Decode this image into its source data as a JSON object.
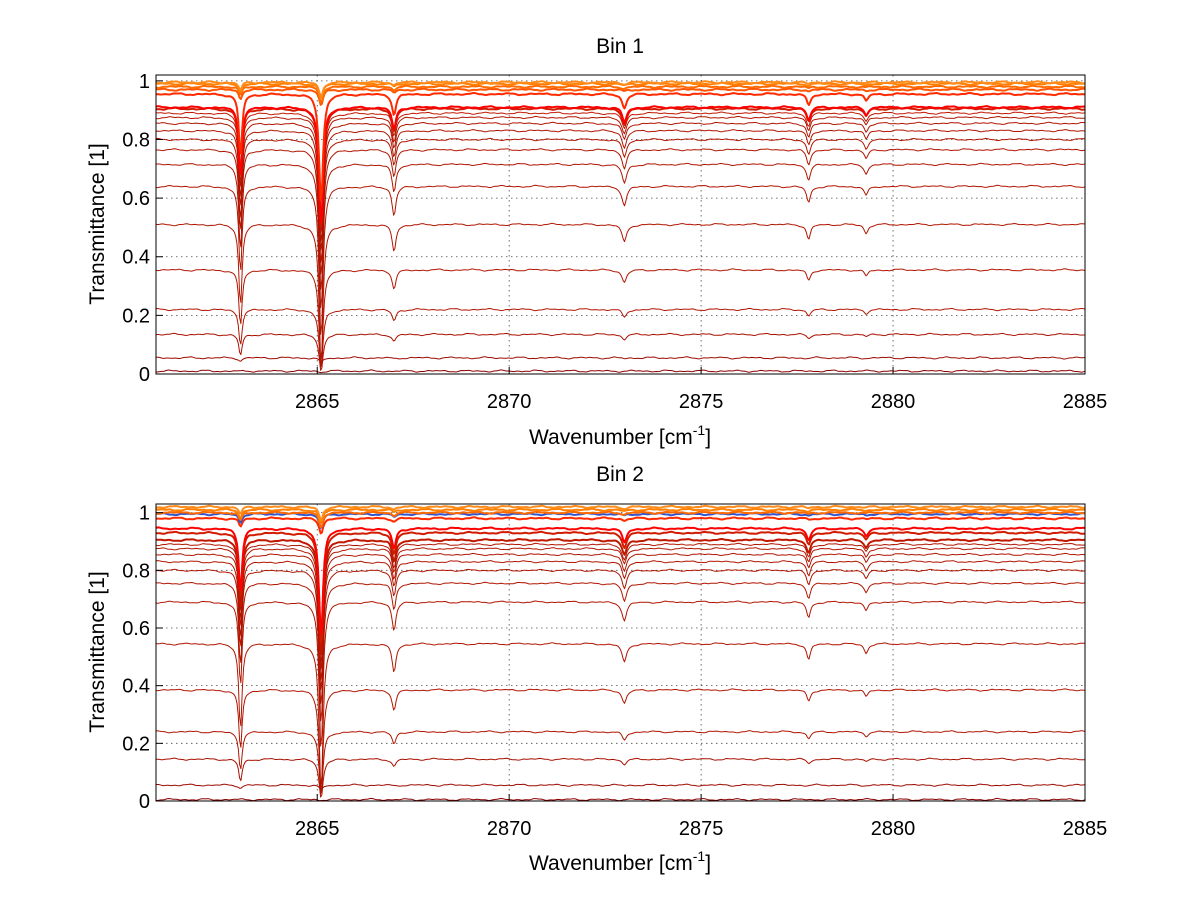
{
  "chart_data": [
    {
      "type": "line",
      "title": "Bin 1",
      "xlabel_main": "Wavenumber [cm",
      "xlabel_sup": "-1",
      "xlabel_end": "]",
      "ylabel": "Transmittance [1]",
      "xlim": [
        2860.8,
        2885
      ],
      "ylim": [
        0,
        1.02
      ],
      "xticks": [
        2865,
        2870,
        2875,
        2880,
        2885
      ],
      "xtick_labels": [
        "2865",
        "2870",
        "2875",
        "2880",
        "2885"
      ],
      "yticks": [
        0,
        0.2,
        0.4,
        0.6,
        0.8,
        1
      ],
      "ytick_labels": [
        "0",
        "0.2",
        "0.4",
        "0.6",
        "0.8",
        "1"
      ],
      "grid": true,
      "absorption_lines_cm1": [
        2863.0,
        2865.1,
        2867.0,
        2873.0,
        2877.8,
        2879.3
      ],
      "series_baseline_transmittance": [
        0.01,
        0.055,
        0.135,
        0.22,
        0.355,
        0.51,
        0.64,
        0.715,
        0.765,
        0.8,
        0.83,
        0.855,
        0.875,
        0.89,
        0.905,
        0.91,
        0.955,
        0.97,
        0.98,
        0.99,
        0.995
      ],
      "series_colors": [
        "#8b0000",
        "#9b0a00",
        "#a81000",
        "#b01500",
        "#b01500",
        "#b01500",
        "#b01500",
        "#b01500",
        "#b01500",
        "#b01500",
        "#b01500",
        "#b01500",
        "#b01500",
        "#c01800",
        "#d01c00",
        "#ff0000",
        "#ff2a00",
        "#ff5500",
        "#ff6a00",
        "#ff7f00",
        "#ff8c1a"
      ]
    },
    {
      "type": "line",
      "title": "Bin 2",
      "xlabel_main": "Wavenumber [cm",
      "xlabel_sup": "-1",
      "xlabel_end": "]",
      "ylabel": "Transmittance [1]",
      "xlim": [
        2860.8,
        2885
      ],
      "ylim": [
        0,
        1.03
      ],
      "xticks": [
        2865,
        2870,
        2875,
        2880,
        2885
      ],
      "xtick_labels": [
        "2865",
        "2870",
        "2875",
        "2880",
        "2885"
      ],
      "yticks": [
        0,
        0.2,
        0.4,
        0.6,
        0.8,
        1
      ],
      "ytick_labels": [
        "0",
        "0.2",
        "0.4",
        "0.6",
        "0.8",
        "1"
      ],
      "grid": true,
      "absorption_lines_cm1": [
        2863.0,
        2865.1,
        2867.0,
        2873.0,
        2877.8,
        2879.3
      ],
      "series_baseline_transmittance": [
        0.005,
        0.055,
        0.145,
        0.24,
        0.385,
        0.545,
        0.69,
        0.755,
        0.8,
        0.83,
        0.855,
        0.875,
        0.89,
        0.905,
        0.93,
        0.945,
        0.98,
        0.995,
        1.0,
        1.01,
        1.02
      ],
      "series_colors": [
        "#8b0000",
        "#9b0a00",
        "#a81000",
        "#b01500",
        "#b01500",
        "#b01500",
        "#b01500",
        "#b01500",
        "#b01500",
        "#b01500",
        "#b01500",
        "#b01500",
        "#b01500",
        "#c01800",
        "#d01c00",
        "#ff0000",
        "#ff2a00",
        "#3355cc",
        "#ff6a00",
        "#ff7f00",
        "#ff8c1a"
      ]
    }
  ]
}
